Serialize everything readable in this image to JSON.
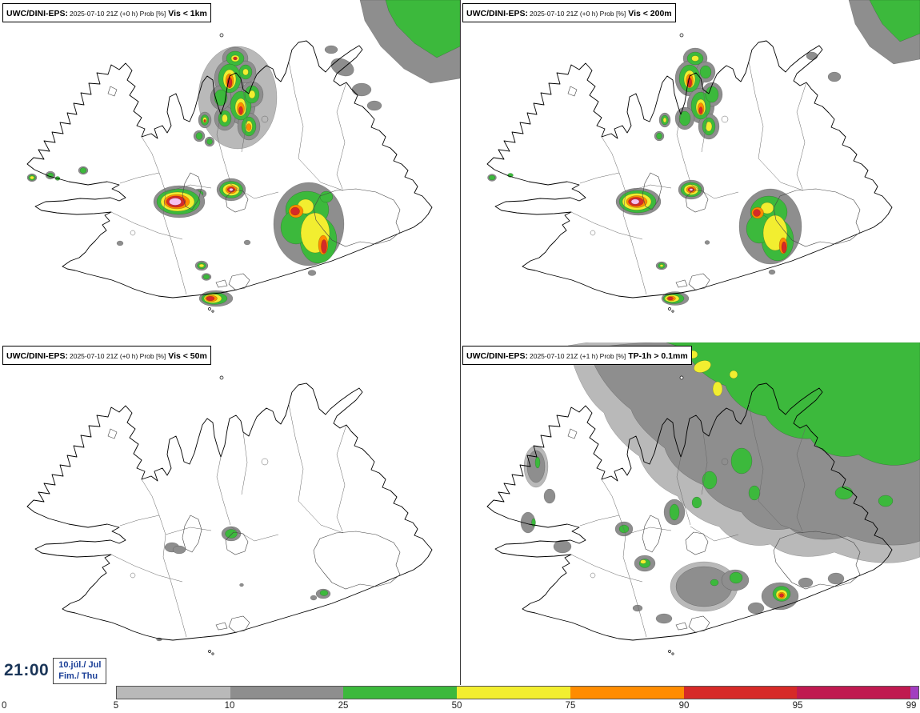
{
  "panels": [
    {
      "model": "UWC/DINI-EPS:",
      "info": "2025-07-10 21Z (+0 h) Prob [%]",
      "variable": "Vis < 1km"
    },
    {
      "model": "UWC/DINI-EPS:",
      "info": "2025-07-10 21Z (+0 h) Prob [%]",
      "variable": "Vis < 200m"
    },
    {
      "model": "UWC/DINI-EPS:",
      "info": "2025-07-10 21Z (+0 h) Prob [%]",
      "variable": "Vis < 50m"
    },
    {
      "model": "UWC/DINI-EPS:",
      "info": "2025-07-10 21Z (+1 h) Prob [%]",
      "variable": "TP-1h > 0.1mm"
    }
  ],
  "timebox": {
    "clock": "21:00",
    "date": "10.júl./ Jul",
    "weekday": "Fim./ Thu"
  },
  "colorbar": {
    "unit": "Prob [%]",
    "ticks": [
      "0",
      "5",
      "10",
      "25",
      "50",
      "75",
      "90",
      "95",
      "99"
    ],
    "segments": [
      {
        "key": "g1",
        "range": "5-10",
        "color": "#b9b9b9"
      },
      {
        "key": "g2",
        "range": "10-25",
        "color": "#8e8e8e"
      },
      {
        "key": "green",
        "range": "25-50",
        "color": "#3cb93c"
      },
      {
        "key": "yellow",
        "range": "50-75",
        "color": "#f2ee30"
      },
      {
        "key": "orange",
        "range": "75-90",
        "color": "#ff8c00"
      },
      {
        "key": "red",
        "range": "90-95",
        "color": "#d62a28"
      },
      {
        "key": "crimson",
        "range": "95-99",
        "color": "#c01a50"
      },
      {
        "key": "purple",
        "range": "99+",
        "color": "#a23ec0"
      }
    ]
  }
}
